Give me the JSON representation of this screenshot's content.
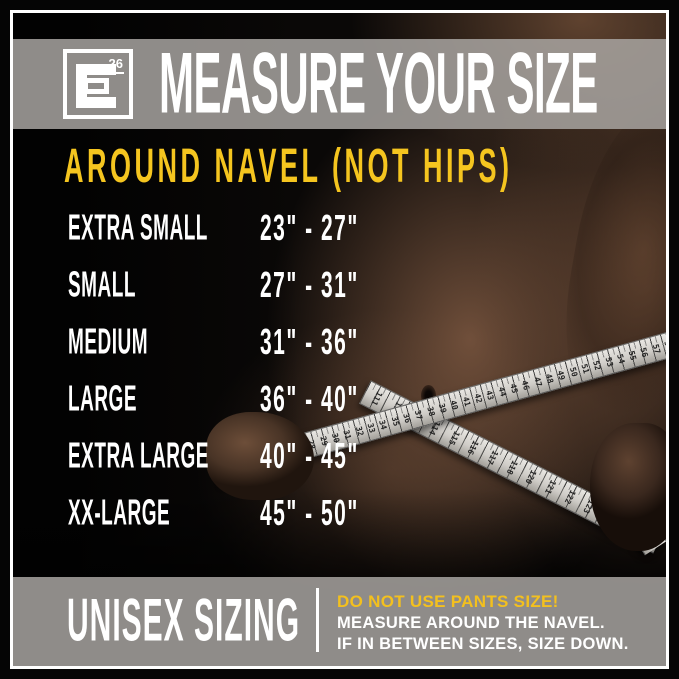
{
  "brand": {
    "logo_letter": "E",
    "logo_number": "26"
  },
  "header": {
    "title": "MEASURE YOUR SIZE"
  },
  "subheader": {
    "text": "AROUND NAVEL (NOT HIPS)"
  },
  "sizes": {
    "rows": [
      {
        "label": "EXTRA SMALL",
        "range": "23\" - 27\""
      },
      {
        "label": "SMALL",
        "range": "27\" - 31\""
      },
      {
        "label": "MEDIUM",
        "range": "31\" - 36\""
      },
      {
        "label": "LARGE",
        "range": "36\" - 40\""
      },
      {
        "label": "EXTRA LARGE",
        "range": "40\" - 45\""
      },
      {
        "label": "XX-LARGE",
        "range": "45\" - 50\""
      }
    ]
  },
  "footer": {
    "left": "UNISEX SIZING",
    "warning": "DO NOT USE PANTS SIZE!",
    "line1": "MEASURE AROUND THE NAVEL.",
    "line2": "IF IN BETWEEN SIZES, SIZE DOWN."
  },
  "colors": {
    "accent": "#F5C51F",
    "band_gray": "#8B8B8B",
    "background": "#0A0807",
    "tape": "#D6D3CE"
  },
  "photo": {
    "tape": {
      "strand_a_numbers": [
        21,
        22,
        23,
        24,
        25,
        26,
        27,
        28,
        29,
        30,
        31,
        32,
        33,
        34,
        35,
        36,
        37,
        38,
        39,
        40,
        41,
        42,
        43,
        44,
        45,
        46,
        47,
        48,
        49,
        50,
        51,
        52,
        53,
        54,
        55,
        56,
        57,
        58
      ],
      "strand_b_numbers": [
        111,
        112,
        113,
        114,
        115,
        116,
        117,
        118,
        120,
        121,
        122,
        123,
        124,
        125,
        126
      ],
      "strand_c_numbers": [
        36,
        37,
        38
      ]
    }
  }
}
